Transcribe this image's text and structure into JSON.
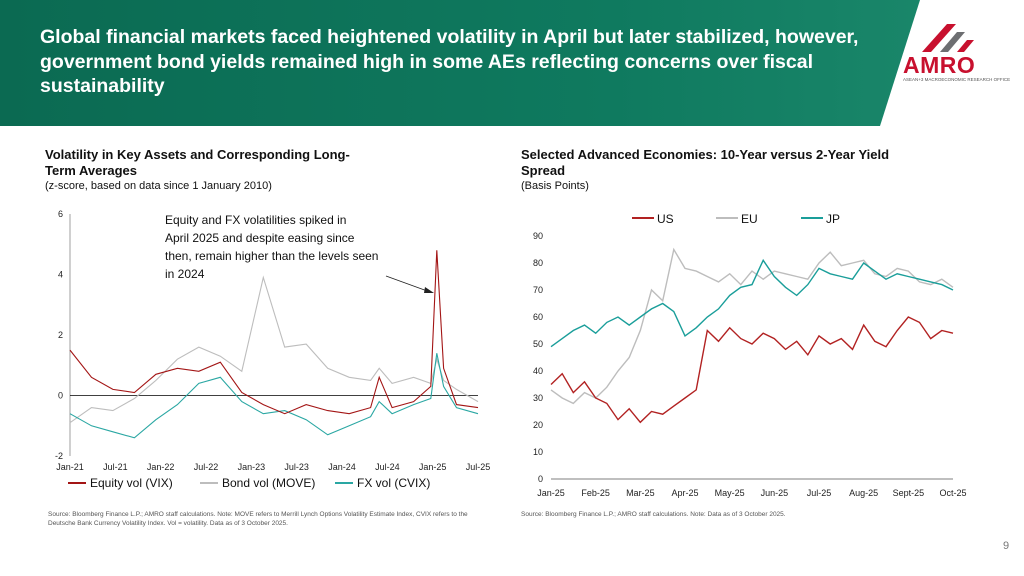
{
  "header": {
    "title": "Global financial markets faced heightened volatility in April but later stabilized, however, government bond yields remained high in some AEs reflecting concerns over fiscal sustainability",
    "logo_text": "AMRO",
    "logo_subtext": "ASEAN+3 MACROECONOMIC RESEARCH OFFICE"
  },
  "left_panel": {
    "title": "Volatility in Key Assets and Corresponding Long-Term Averages",
    "subtitle": "(z-score, based on data since 1 January 2010)",
    "annotation": "Equity and FX volatilities spiked in April 2025 and despite easing since then, remain higher than the levels seen in 2024",
    "footnote": "Source: Bloomberg Finance L.P.; AMRO staff calculations. Note: MOVE refers to Merrill Lynch Options Volatility Estimate Index, CVIX refers to the Deutsche Bank Currency Volatility Index. Vol = volatility. Data as of 3 October 2025."
  },
  "right_panel": {
    "title": "Selected Advanced Economies: 10-Year versus 2-Year Yield Spread",
    "subtitle": "(Basis Points)",
    "footnote": "Source: Bloomberg Finance L.P.; AMRO staff calculations. Note: Data as of 3 October 2025."
  },
  "page_number": "9",
  "colors": {
    "header_bg": "#0f7a5f",
    "us_red": "#b22222",
    "eu_gray": "#bdbdbd",
    "jp_teal": "#1a9e9a",
    "vix_red": "#a31515",
    "move_gray": "#bdbdbd",
    "cvix_teal": "#2aa7a3"
  },
  "chart_data": [
    {
      "type": "line",
      "y_ticks": [
        "-2",
        "0",
        "2",
        "4",
        "6"
      ],
      "ylim": [
        -2,
        6
      ],
      "x_tick_labels": [
        "Jan-21",
        "Jul-21",
        "Jan-22",
        "Jul-22",
        "Jan-23",
        "Jul-23",
        "Jan-24",
        "Jul-24",
        "Jan-25",
        "Jul-25"
      ],
      "x": [
        2021.0,
        2021.25,
        2021.5,
        2021.75,
        2022.0,
        2022.25,
        2022.5,
        2022.75,
        2023.0,
        2023.25,
        2023.5,
        2023.75,
        2024.0,
        2024.25,
        2024.5,
        2024.6,
        2024.75,
        2025.0,
        2025.2,
        2025.27,
        2025.35,
        2025.5,
        2025.75
      ],
      "series": [
        {
          "name": "Equity vol (VIX)",
          "values": [
            1.5,
            0.6,
            0.2,
            0.1,
            0.7,
            0.9,
            0.8,
            1.1,
            0.1,
            -0.3,
            -0.6,
            -0.3,
            -0.5,
            -0.6,
            -0.4,
            0.6,
            -0.4,
            -0.2,
            0.3,
            4.8,
            0.9,
            -0.3,
            -0.4
          ]
        },
        {
          "name": "Bond vol (MOVE)",
          "values": [
            -0.9,
            -0.4,
            -0.5,
            -0.1,
            0.5,
            1.2,
            1.6,
            1.3,
            0.8,
            3.9,
            1.6,
            1.7,
            0.9,
            0.6,
            0.5,
            0.9,
            0.4,
            0.6,
            0.4,
            1.2,
            0.5,
            0.2,
            -0.2
          ]
        },
        {
          "name": "FX vol (CVIX)",
          "values": [
            -0.6,
            -1.0,
            -1.2,
            -1.4,
            -0.8,
            -0.3,
            0.4,
            0.6,
            -0.2,
            -0.6,
            -0.5,
            -0.8,
            -1.3,
            -1.0,
            -0.7,
            -0.2,
            -0.6,
            -0.3,
            -0.1,
            1.4,
            0.3,
            -0.4,
            -0.6
          ]
        }
      ]
    },
    {
      "type": "line",
      "y_ticks": [
        "0",
        "10",
        "20",
        "30",
        "40",
        "50",
        "60",
        "70",
        "80",
        "90"
      ],
      "ylim": [
        0,
        90
      ],
      "x_tick_labels": [
        "Jan-25",
        "Feb-25",
        "Mar-25",
        "Apr-25",
        "May-25",
        "Jun-25",
        "Jul-25",
        "Aug-25",
        "Sept-25",
        "Oct-25"
      ],
      "x": [
        0,
        0.25,
        0.5,
        0.75,
        1,
        1.25,
        1.5,
        1.75,
        2,
        2.25,
        2.5,
        2.75,
        3,
        3.25,
        3.5,
        3.75,
        4,
        4.25,
        4.5,
        4.75,
        5,
        5.25,
        5.5,
        5.75,
        6,
        6.25,
        6.5,
        6.75,
        7,
        7.25,
        7.5,
        7.75,
        8,
        8.25,
        8.5,
        8.75,
        9
      ],
      "legend_position": "top",
      "series": [
        {
          "name": "US",
          "values": [
            35,
            39,
            32,
            36,
            30,
            28,
            22,
            26,
            21,
            25,
            24,
            27,
            30,
            33,
            55,
            51,
            56,
            52,
            50,
            54,
            52,
            48,
            51,
            46,
            53,
            50,
            52,
            48,
            57,
            51,
            49,
            55,
            60,
            58,
            52,
            55,
            54
          ]
        },
        {
          "name": "EU",
          "values": [
            33,
            30,
            28,
            32,
            30,
            34,
            40,
            45,
            55,
            70,
            66,
            85,
            78,
            77,
            75,
            73,
            76,
            72,
            77,
            74,
            77,
            76,
            75,
            74,
            80,
            84,
            79,
            80,
            81,
            76,
            75,
            78,
            77,
            73,
            72,
            74,
            71
          ]
        },
        {
          "name": "JP",
          "values": [
            49,
            52,
            55,
            57,
            54,
            58,
            60,
            57,
            60,
            63,
            65,
            62,
            53,
            56,
            60,
            63,
            68,
            71,
            72,
            81,
            75,
            71,
            68,
            72,
            78,
            76,
            75,
            74,
            80,
            77,
            74,
            76,
            75,
            74,
            73,
            72,
            70
          ]
        }
      ]
    }
  ]
}
